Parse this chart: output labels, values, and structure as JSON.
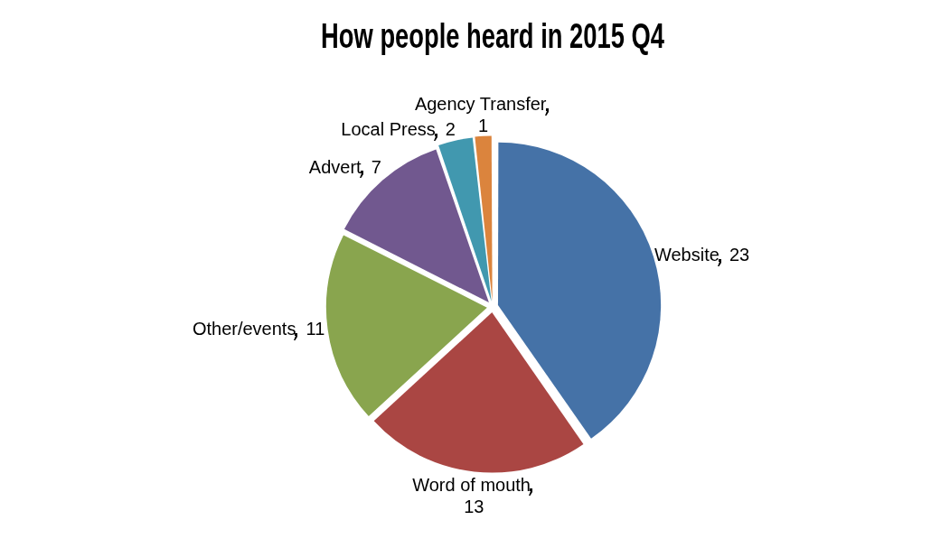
{
  "chart_data": {
    "type": "pie",
    "title": "How people heard in 2015 Q4",
    "categories": [
      "Website",
      "Word of mouth",
      "Other/events",
      "Advert",
      "Local Press",
      "Agency Transfer"
    ],
    "values": [
      23,
      13,
      11,
      7,
      2,
      1
    ],
    "colors": [
      "#4572a7",
      "#aa4643",
      "#89a54e",
      "#71588f",
      "#4198af",
      "#db843d"
    ],
    "data_labels": true,
    "legend": false
  }
}
